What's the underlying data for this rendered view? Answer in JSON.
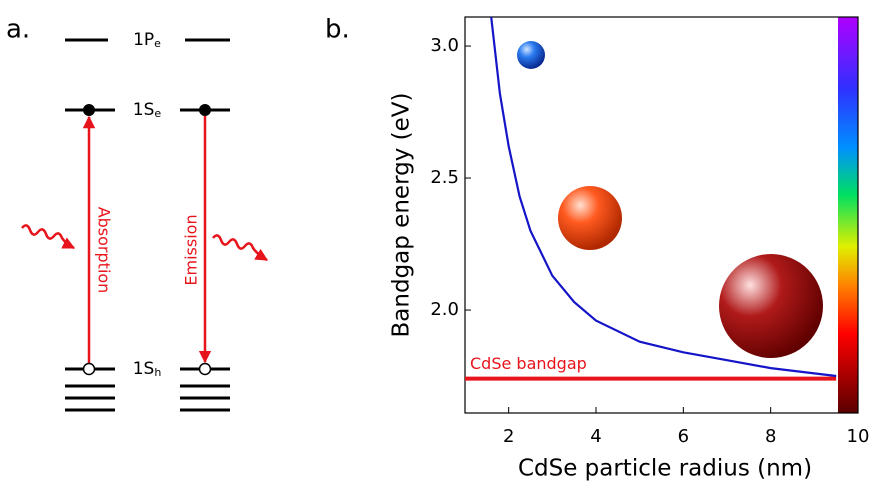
{
  "diagram": {
    "panel_label": "a.",
    "levels": [
      {
        "main": "1P",
        "sub": "e"
      },
      {
        "main": "1S",
        "sub": "e"
      },
      {
        "main": "1S",
        "sub": "h"
      }
    ],
    "transitions": [
      "Absorption",
      "Emission"
    ]
  },
  "chart_data": {
    "type": "line",
    "panel_label": "b.",
    "x_label": "CdSe particle radius (nm)",
    "y_label": "Bandgap energy (eV)",
    "x": [
      1.6,
      1.8,
      2,
      2.25,
      2.5,
      3,
      3.5,
      4,
      5,
      6,
      7,
      8,
      9,
      9.5
    ],
    "series": [
      {
        "color": "#1414c8",
        "values": [
          3.11,
          2.82,
          2.62,
          2.43,
          2.3,
          2.13,
          2.03,
          1.96,
          1.88,
          1.84,
          1.81,
          1.78,
          1.76,
          1.75
        ]
      }
    ],
    "reference_line": {
      "label": "CdSe bandgap",
      "value": 1.74,
      "x_end": 9.5,
      "color": "#e8141c"
    },
    "xlim": [
      1,
      10
    ],
    "ylim": [
      1.61,
      3.11
    ],
    "xticks": [
      2,
      4,
      6,
      8,
      10
    ],
    "yticks": [
      {
        "value": 2,
        "label": "2.0"
      },
      2.5,
      {
        "value": 3,
        "label": "3.0"
      }
    ]
  }
}
